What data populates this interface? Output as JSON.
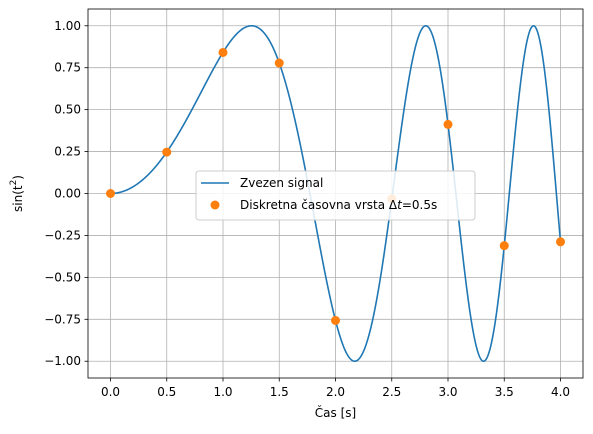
{
  "chart_data": {
    "type": "line",
    "title": "",
    "xlabel": "Čas [s]",
    "ylabel_base": "sin(t",
    "ylabel_sup": "2",
    "ylabel_close": ")",
    "xlim": [
      -0.2,
      4.2
    ],
    "ylim": [
      -1.1,
      1.1
    ],
    "xticks": [
      0.0,
      0.5,
      1.0,
      1.5,
      2.0,
      2.5,
      3.0,
      3.5,
      4.0
    ],
    "xtick_labels": [
      "0.0",
      "0.5",
      "1.0",
      "1.5",
      "2.0",
      "2.5",
      "3.0",
      "3.5",
      "4.0"
    ],
    "yticks": [
      -1.0,
      -0.75,
      -0.5,
      -0.25,
      0.0,
      0.25,
      0.5,
      0.75,
      1.0
    ],
    "ytick_labels": [
      "−1.00",
      "−0.75",
      "−0.50",
      "−0.25",
      "0.00",
      "0.25",
      "0.50",
      "0.75",
      "1.00"
    ],
    "grid": true,
    "legend_placement": "center",
    "series": [
      {
        "name": "Zvezen signal",
        "kind": "line",
        "color": "#1f77b4",
        "function": "sin(t^2)",
        "t_range": [
          0,
          4
        ]
      },
      {
        "name_prefix": "Diskretna časovna vrsta Δ",
        "name_var": "t",
        "name_suffix": "=0.5s",
        "kind": "scatter",
        "color": "#ff7f0e",
        "x": [
          0.0,
          0.5,
          1.0,
          1.5,
          2.0,
          2.5,
          3.0,
          3.5,
          4.0
        ],
        "y": [
          0.0,
          0.247,
          0.841,
          0.778,
          -0.757,
          -0.032,
          0.412,
          -0.311,
          -0.288
        ]
      }
    ]
  }
}
